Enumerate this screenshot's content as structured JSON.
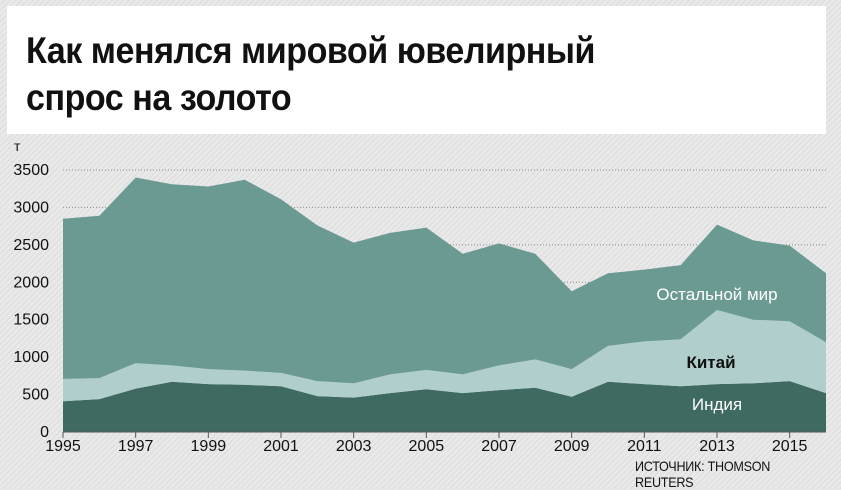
{
  "title_line1": "Как менялся мировой ювелирный",
  "title_line2": "спрос на золото",
  "source": "ИСТОЧНИК: THOMSON REUTERS",
  "chart_data": {
    "type": "area",
    "stacked": true,
    "unit_label": "т",
    "x": [
      1995,
      1996,
      1997,
      1998,
      1999,
      2000,
      2001,
      2002,
      2003,
      2004,
      2005,
      2006,
      2007,
      2008,
      2009,
      2010,
      2011,
      2012,
      2013,
      2014,
      2015,
      2016
    ],
    "x_tick_labels": [
      "1995",
      "1997",
      "1999",
      "2001",
      "2003",
      "2005",
      "2007",
      "2009",
      "2011",
      "2013",
      "2015"
    ],
    "y_tick_labels": [
      "0",
      "500",
      "1000",
      "1500",
      "2000",
      "2500",
      "3000",
      "3500"
    ],
    "ylim": [
      0,
      3500
    ],
    "grid": true,
    "series": [
      {
        "name": "Индия",
        "color": "#3f6a62",
        "values": [
          410,
          440,
          580,
          670,
          640,
          630,
          610,
          480,
          460,
          520,
          570,
          520,
          560,
          590,
          470,
          670,
          640,
          610,
          640,
          650,
          680,
          520
        ]
      },
      {
        "name": "Китай",
        "color": "#b0cecb",
        "values": [
          300,
          280,
          340,
          220,
          200,
          190,
          180,
          200,
          190,
          250,
          260,
          250,
          330,
          380,
          370,
          480,
          570,
          630,
          990,
          850,
          800,
          680
        ]
      },
      {
        "name": "Остальной мир",
        "color": "#6b9a93",
        "values": [
          2140,
          2170,
          2480,
          2420,
          2440,
          2550,
          2320,
          2080,
          1880,
          1890,
          1900,
          1610,
          1630,
          1410,
          1040,
          970,
          960,
          990,
          1140,
          1060,
          1010,
          920
        ]
      }
    ]
  }
}
